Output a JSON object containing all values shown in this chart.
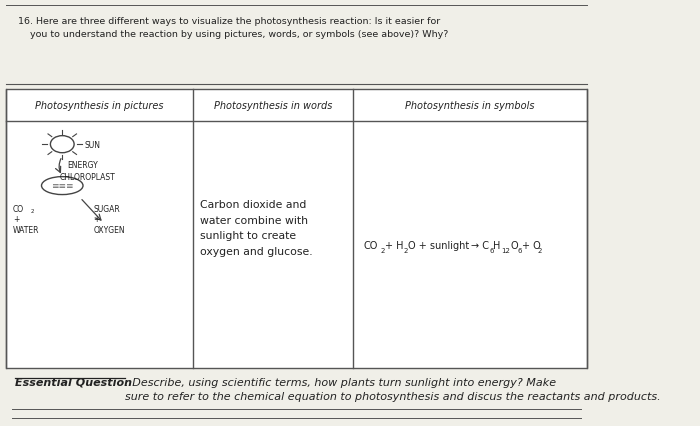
{
  "background_color": "#e8e8e8",
  "page_color": "#f0efe8",
  "question_text_1": "16. Here are three different ways to visualize the photosynthesis reaction: Is it easier for",
  "question_text_2": "    you to understand the reaction by using pictures, words, or symbols (see above)? Why?",
  "col_headers": [
    "Photosynthesis in pictures",
    "Photosynthesis in words",
    "Photosynthesis in symbols"
  ],
  "words_text": "Carbon dioxide and\nwater combine with\nsunlight to create\noxygen and glucose.",
  "essential_question_label": "Essential Question",
  "essential_question_text": ": Describe, using scientific terms, how plants turn sunlight into energy? Make\nsure to refer to the chemical equation to photosynthesis and discus the reactants and products.",
  "line_color": "#555555",
  "text_color": "#222222"
}
